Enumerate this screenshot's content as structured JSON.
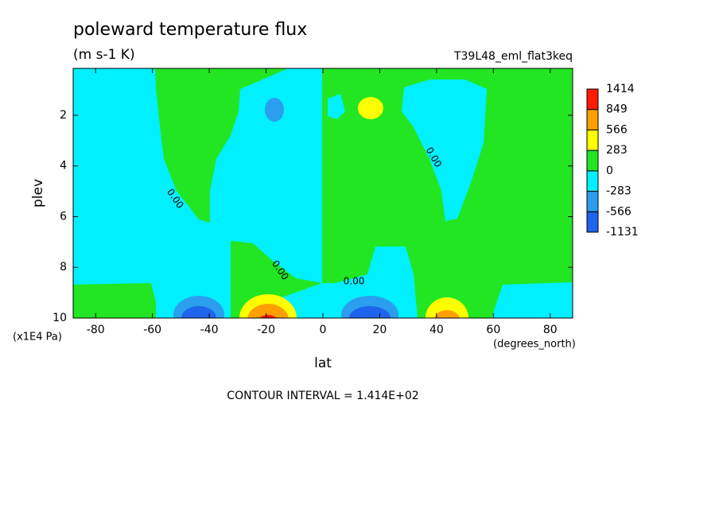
{
  "chart_data": {
    "type": "contour",
    "title": "poleward temperature flux",
    "units": "(m s-1 K)",
    "tag": "T39L48_eml_flat3keq",
    "x_label": "lat",
    "x_units": "(degrees_north)",
    "y_label": "plev",
    "y_units": "(x1E4 Pa)",
    "footnote": "CONTOUR INTERVAL = 1.414E+02",
    "xlim": [
      -87.9,
      87.9
    ],
    "xticks": [
      -80,
      -60,
      -40,
      -20,
      0,
      20,
      40,
      60,
      80
    ],
    "ylim": [
      10,
      0.15
    ],
    "yticks": [
      2,
      4,
      6,
      8,
      10
    ],
    "levels": [
      -1131,
      -566,
      -283,
      0,
      283,
      566,
      849,
      1414
    ],
    "colors": [
      "#1e64ec",
      "#2c9ef0",
      "#00f0ff",
      "#22e622",
      "#ffff00",
      "#ffa000",
      "#ff1a00"
    ],
    "contour_labels": [
      "0.00",
      "0.00",
      "0.00",
      "0.00"
    ]
  }
}
